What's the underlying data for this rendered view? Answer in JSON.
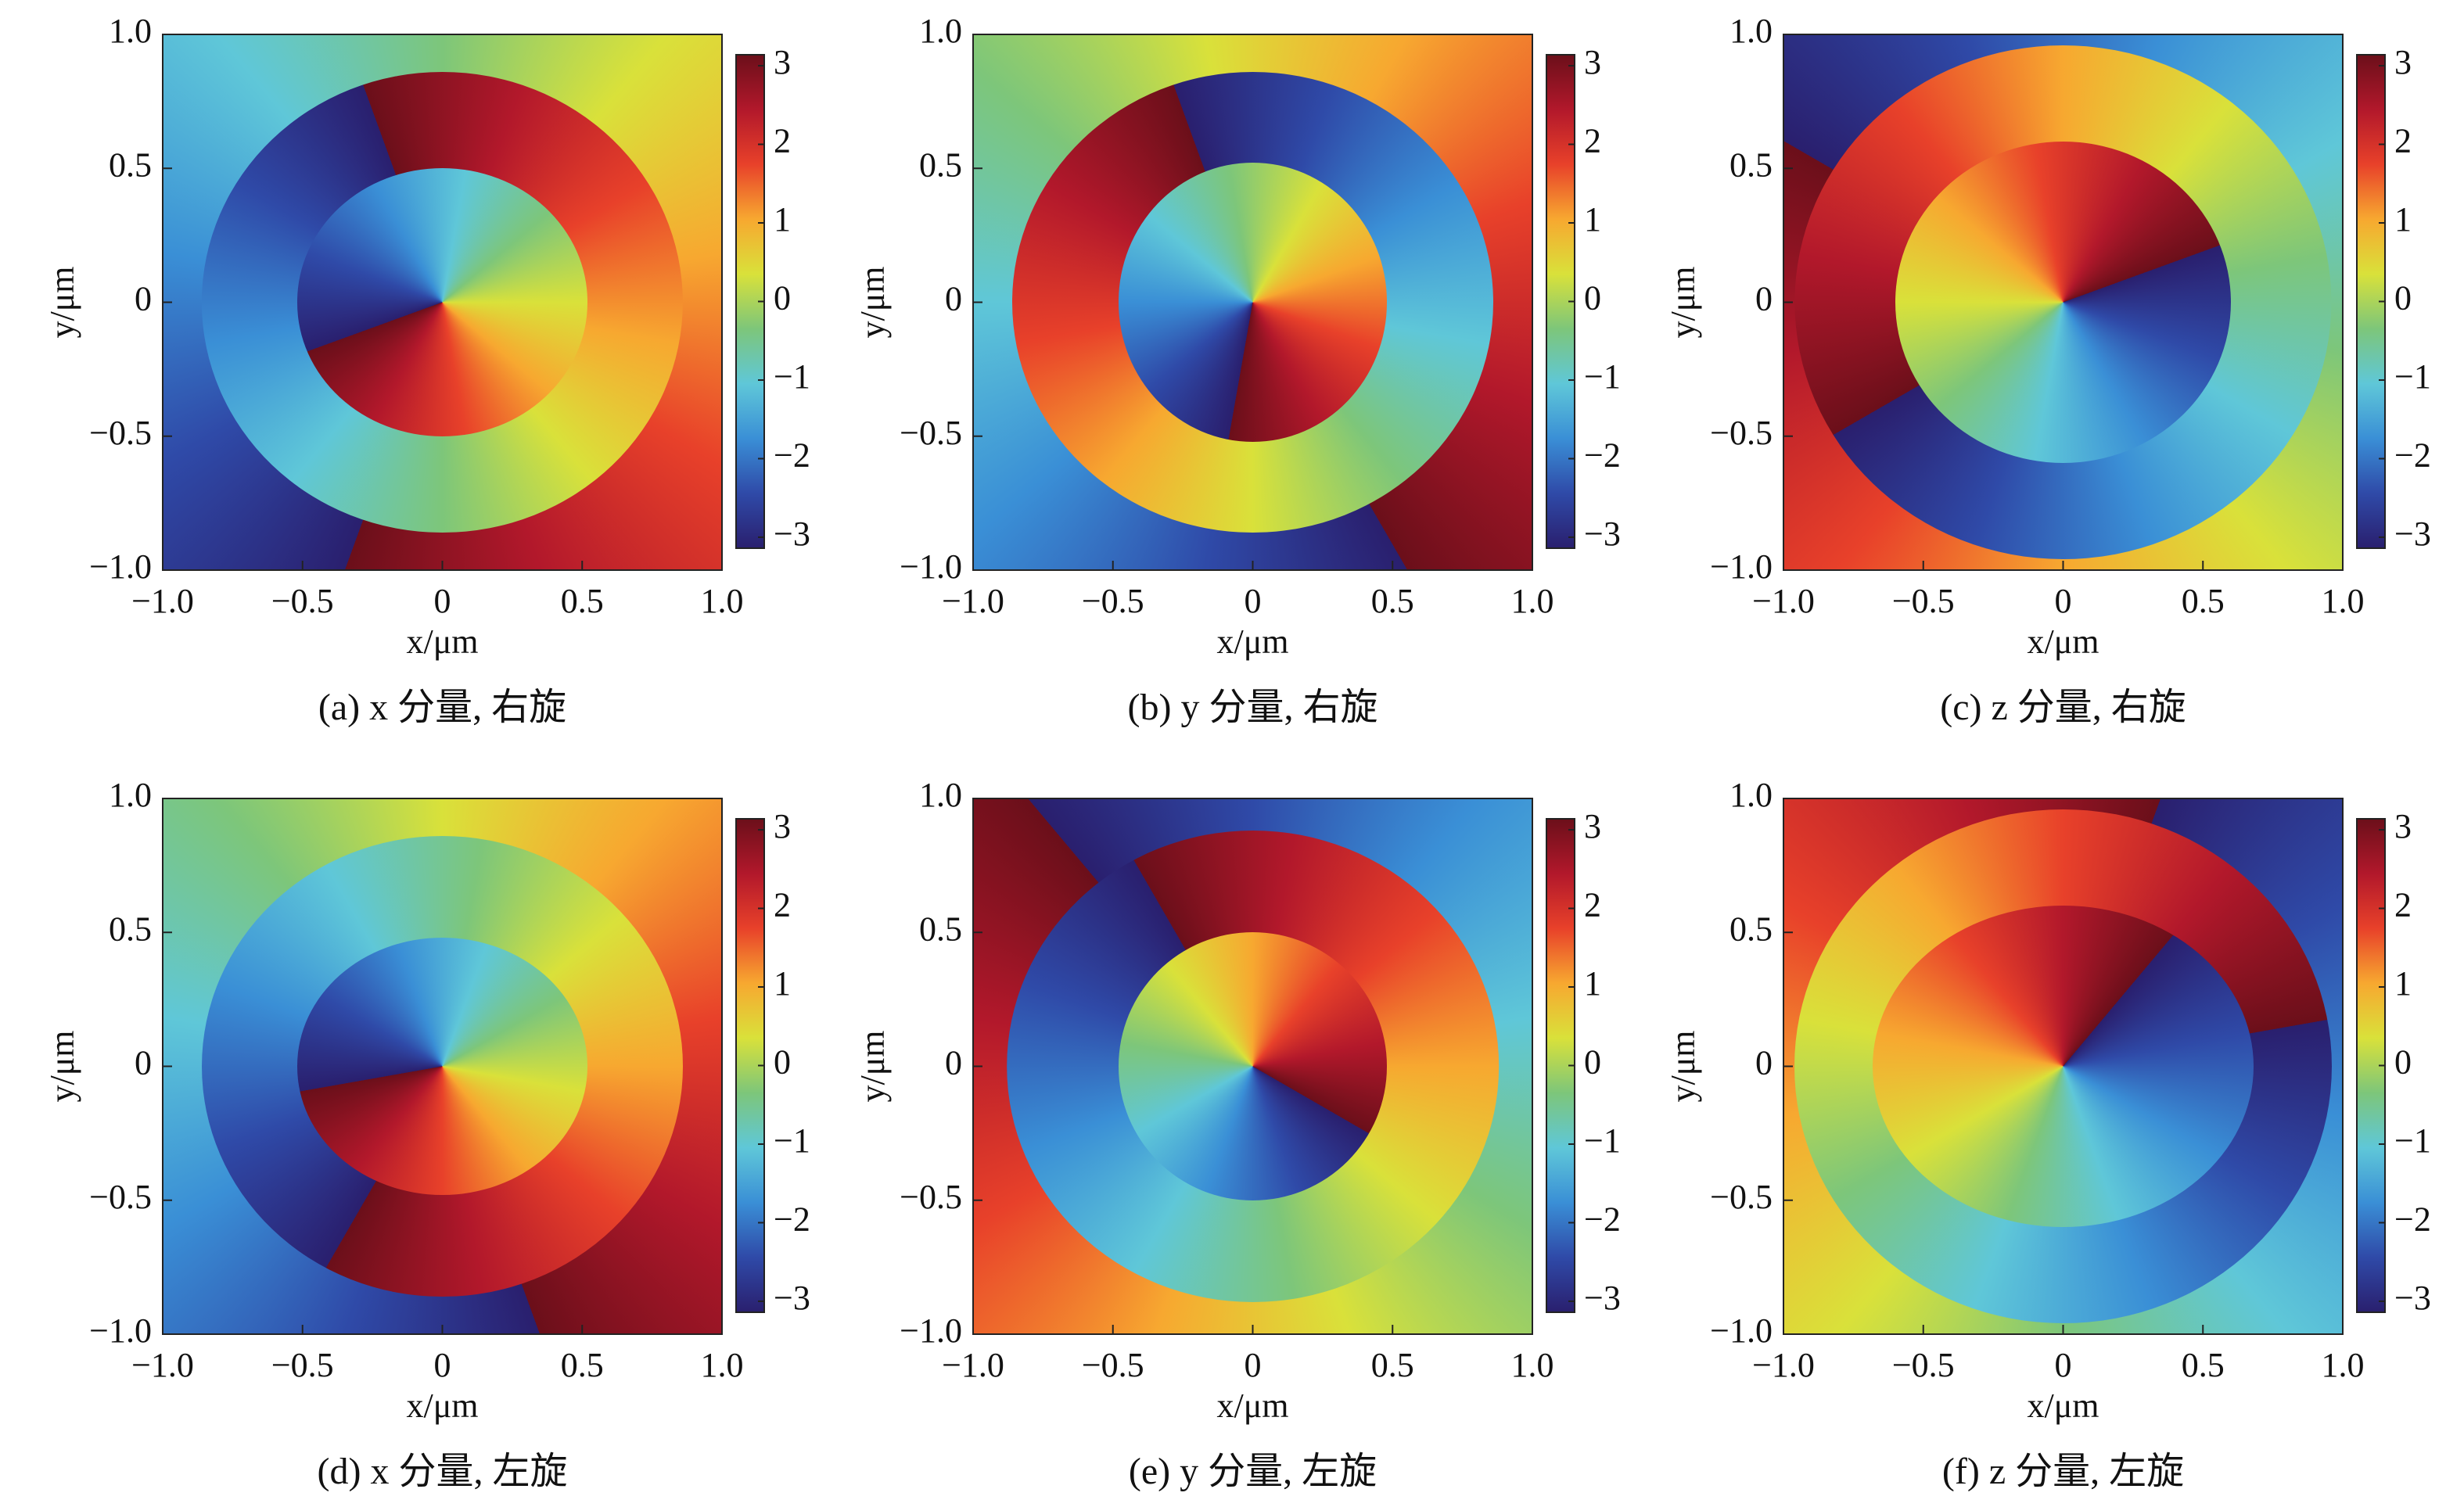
{
  "chart_data": [
    {
      "type": "heatmap",
      "caption": "(a) x 分量, 右旋",
      "xlabel": "x/μm",
      "ylabel": "y/μm",
      "xlim": [
        -1,
        1
      ],
      "ylim": [
        -1,
        1
      ],
      "xticks": [
        {
          "value": -1,
          "label": "−1.0"
        },
        {
          "value": -0.5,
          "label": "−0.5"
        },
        0,
        0.5,
        {
          "value": 1,
          "label": "1.0"
        }
      ],
      "yticks": [
        {
          "value": -1,
          "label": "−1.0"
        },
        {
          "value": -0.5,
          "label": "−0.5"
        },
        0,
        0.5,
        {
          "value": 1,
          "label": "1.0"
        }
      ],
      "clim": [
        -3.14,
        3.14
      ],
      "cticks": [
        {
          "value": -3,
          "label": "−3"
        },
        {
          "value": -2,
          "label": "−2"
        },
        {
          "value": -1,
          "label": "−1"
        },
        0,
        1,
        2,
        3
      ],
      "colormap": [
        "#2a1f6e",
        "#2f4aa8",
        "#3a8fd6",
        "#5fc7d8",
        "#7dc67a",
        "#d9e13a",
        "#f7a830",
        "#e8412a",
        "#b2182b",
        "#6b0f1a"
      ]
    },
    {
      "type": "heatmap",
      "caption": "(b) y 分量, 右旋",
      "xlabel": "x/μm",
      "ylabel": "y/μm",
      "xlim": [
        -1,
        1
      ],
      "ylim": [
        -1,
        1
      ],
      "xticks": [
        {
          "value": -1,
          "label": "−1.0"
        },
        {
          "value": -0.5,
          "label": "−0.5"
        },
        0,
        0.5,
        {
          "value": 1,
          "label": "1.0"
        }
      ],
      "yticks": [
        {
          "value": -1,
          "label": "−1.0"
        },
        {
          "value": -0.5,
          "label": "−0.5"
        },
        0,
        0.5,
        {
          "value": 1,
          "label": "1.0"
        }
      ],
      "clim": [
        -3.14,
        3.14
      ],
      "cticks": [
        {
          "value": -3,
          "label": "−3"
        },
        {
          "value": -2,
          "label": "−2"
        },
        {
          "value": -1,
          "label": "−1"
        },
        0,
        1,
        2,
        3
      ],
      "colormap": [
        "#2a1f6e",
        "#2f4aa8",
        "#3a8fd6",
        "#5fc7d8",
        "#7dc67a",
        "#d9e13a",
        "#f7a830",
        "#e8412a",
        "#b2182b",
        "#6b0f1a"
      ]
    },
    {
      "type": "heatmap",
      "caption": "(c) z 分量, 右旋",
      "xlabel": "x/μm",
      "ylabel": "y/μm",
      "xlim": [
        -1,
        1
      ],
      "ylim": [
        -1,
        1
      ],
      "xticks": [
        {
          "value": -1,
          "label": "−1.0"
        },
        {
          "value": -0.5,
          "label": "−0.5"
        },
        0,
        0.5,
        {
          "value": 1,
          "label": "1.0"
        }
      ],
      "yticks": [
        {
          "value": -1,
          "label": "−1.0"
        },
        {
          "value": -0.5,
          "label": "−0.5"
        },
        0,
        0.5,
        {
          "value": 1,
          "label": "1.0"
        }
      ],
      "clim": [
        -3.14,
        3.14
      ],
      "cticks": [
        {
          "value": -3,
          "label": "−3"
        },
        {
          "value": -2,
          "label": "−2"
        },
        {
          "value": -1,
          "label": "−1"
        },
        0,
        1,
        2,
        3
      ],
      "colormap": [
        "#2a1f6e",
        "#2f4aa8",
        "#3a8fd6",
        "#5fc7d8",
        "#7dc67a",
        "#d9e13a",
        "#f7a830",
        "#e8412a",
        "#b2182b",
        "#6b0f1a"
      ]
    },
    {
      "type": "heatmap",
      "caption": "(d) x 分量, 左旋",
      "xlabel": "x/μm",
      "ylabel": "y/μm",
      "xlim": [
        -1,
        1
      ],
      "ylim": [
        -1,
        1
      ],
      "xticks": [
        {
          "value": -1,
          "label": "−1.0"
        },
        {
          "value": -0.5,
          "label": "−0.5"
        },
        0,
        0.5,
        {
          "value": 1,
          "label": "1.0"
        }
      ],
      "yticks": [
        {
          "value": -1,
          "label": "−1.0"
        },
        {
          "value": -0.5,
          "label": "−0.5"
        },
        0,
        0.5,
        {
          "value": 1,
          "label": "1.0"
        }
      ],
      "clim": [
        -3.14,
        3.14
      ],
      "cticks": [
        {
          "value": -3,
          "label": "−3"
        },
        {
          "value": -2,
          "label": "−2"
        },
        {
          "value": -1,
          "label": "−1"
        },
        0,
        1,
        2,
        3
      ],
      "colormap": [
        "#2a1f6e",
        "#2f4aa8",
        "#3a8fd6",
        "#5fc7d8",
        "#7dc67a",
        "#d9e13a",
        "#f7a830",
        "#e8412a",
        "#b2182b",
        "#6b0f1a"
      ]
    },
    {
      "type": "heatmap",
      "caption": "(e) y 分量, 左旋",
      "xlabel": "x/μm",
      "ylabel": "y/μm",
      "xlim": [
        -1,
        1
      ],
      "ylim": [
        -1,
        1
      ],
      "xticks": [
        {
          "value": -1,
          "label": "−1.0"
        },
        {
          "value": -0.5,
          "label": "−0.5"
        },
        0,
        0.5,
        {
          "value": 1,
          "label": "1.0"
        }
      ],
      "yticks": [
        {
          "value": -1,
          "label": "−1.0"
        },
        {
          "value": -0.5,
          "label": "−0.5"
        },
        0,
        0.5,
        {
          "value": 1,
          "label": "1.0"
        }
      ],
      "clim": [
        -3.14,
        3.14
      ],
      "cticks": [
        {
          "value": -3,
          "label": "−3"
        },
        {
          "value": -2,
          "label": "−2"
        },
        {
          "value": -1,
          "label": "−1"
        },
        0,
        1,
        2,
        3
      ],
      "colormap": [
        "#2a1f6e",
        "#2f4aa8",
        "#3a8fd6",
        "#5fc7d8",
        "#7dc67a",
        "#d9e13a",
        "#f7a830",
        "#e8412a",
        "#b2182b",
        "#6b0f1a"
      ]
    },
    {
      "type": "heatmap",
      "caption": "(f) z 分量, 左旋",
      "xlabel": "x/μm",
      "ylabel": "y/μm",
      "xlim": [
        -1,
        1
      ],
      "ylim": [
        -1,
        1
      ],
      "xticks": [
        {
          "value": -1,
          "label": "−1.0"
        },
        {
          "value": -0.5,
          "label": "−0.5"
        },
        0,
        0.5,
        {
          "value": 1,
          "label": "1.0"
        }
      ],
      "yticks": [
        {
          "value": -1,
          "label": "−1.0"
        },
        {
          "value": -0.5,
          "label": "−0.5"
        },
        0,
        0.5,
        {
          "value": 1,
          "label": "1.0"
        }
      ],
      "clim": [
        -3.14,
        3.14
      ],
      "cticks": [
        {
          "value": -3,
          "label": "−3"
        },
        {
          "value": -2,
          "label": "−2"
        },
        {
          "value": -1,
          "label": "−1"
        },
        0,
        1,
        2,
        3
      ],
      "colormap": [
        "#2a1f6e",
        "#2f4aa8",
        "#3a8fd6",
        "#5fc7d8",
        "#7dc67a",
        "#d9e13a",
        "#f7a830",
        "#e8412a",
        "#b2182b",
        "#6b0f1a"
      ]
    }
  ]
}
